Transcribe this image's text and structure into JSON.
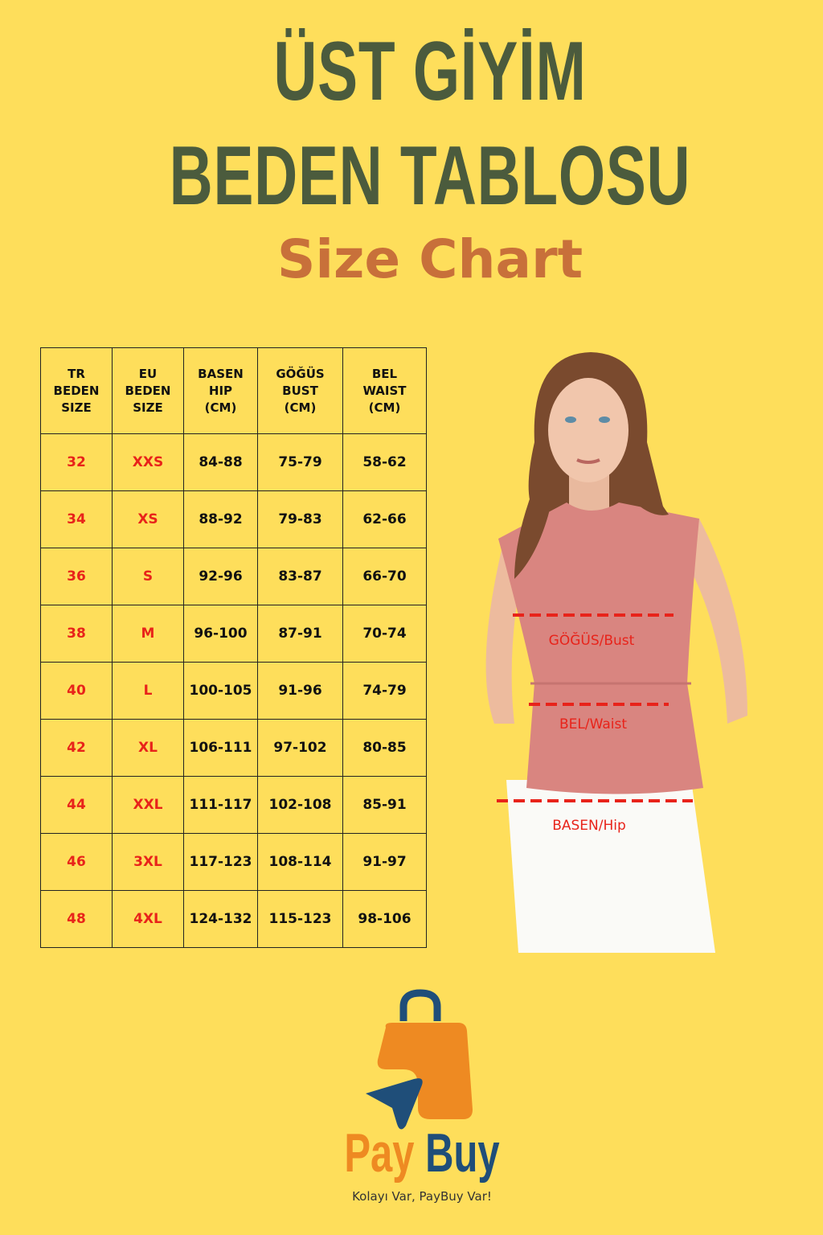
{
  "title": {
    "line1": "ÜST GİYİM",
    "line2": "BEDEN TABLOSU",
    "line3": "Size Chart"
  },
  "table": {
    "headers": [
      "TR\nBEDEN\nSIZE",
      "EU\nBEDEN\nSIZE",
      "BASEN\nHIP\n(CM)",
      "GÖĞÜS\nBUST\n(CM)",
      "BEL\nWAIST\n(CM)"
    ],
    "rows": [
      [
        "32",
        "XXS",
        "84-88",
        "75-79",
        "58-62"
      ],
      [
        "34",
        "XS",
        "88-92",
        "79-83",
        "62-66"
      ],
      [
        "36",
        "S",
        "92-96",
        "83-87",
        "66-70"
      ],
      [
        "38",
        "M",
        "96-100",
        "87-91",
        "70-74"
      ],
      [
        "40",
        "L",
        "100-105",
        "91-96",
        "74-79"
      ],
      [
        "42",
        "XL",
        "106-111",
        "97-102",
        "80-85"
      ],
      [
        "44",
        "XXL",
        "111-117",
        "102-108",
        "85-91"
      ],
      [
        "46",
        "3XL",
        "117-123",
        "108-114",
        "91-97"
      ],
      [
        "48",
        "4XL",
        "124-132",
        "115-123",
        "98-106"
      ]
    ]
  },
  "measure_labels": {
    "bust": "GÖĞÜS/Bust",
    "waist": "BEL/Waist",
    "hip": "BASEN/Hip"
  },
  "brand": {
    "pay": "Pay",
    "buy": "Buy",
    "tagline": "Kolayı Var, PayBuy Var!",
    "orange": "#EE8A22",
    "blue": "#1F4E79"
  },
  "colors": {
    "background": "#FEDE5B",
    "title": "#4B5B3D",
    "subtitle": "#C8703A",
    "size_red": "#E8231A",
    "measure_line": "#E8231A"
  }
}
